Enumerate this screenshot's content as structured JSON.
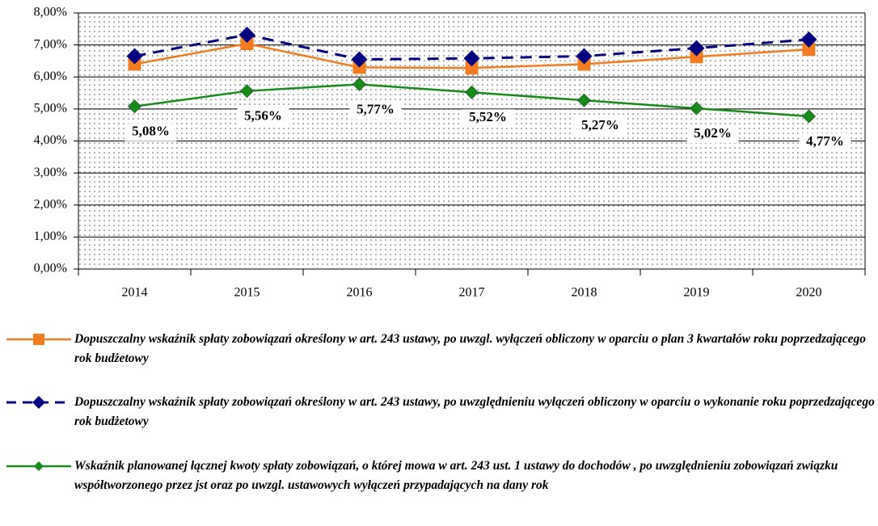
{
  "chart_data": {
    "type": "line",
    "categories": [
      "2014",
      "2015",
      "2016",
      "2017",
      "2018",
      "2019",
      "2020"
    ],
    "ylim": [
      0,
      8
    ],
    "yticks": [
      {
        "value": 0,
        "label": "0,00%"
      },
      {
        "value": 1,
        "label": "1,00%"
      },
      {
        "value": 2,
        "label": "2,00%"
      },
      {
        "value": 3,
        "label": "3,00%"
      },
      {
        "value": 4,
        "label": "4,00%"
      },
      {
        "value": 5,
        "label": "5,00%"
      },
      {
        "value": 6,
        "label": "6,00%"
      },
      {
        "value": 7,
        "label": "7,00%"
      },
      {
        "value": 8,
        "label": "8,00%"
      }
    ],
    "grid": true,
    "series": [
      {
        "name": "Dopuszczalny wskaźnik spłaty zobowiązań określony w art. 243 ustawy, po uwzgl. wyłączeń obliczony w oparciu o plan 3 kwartałów roku poprzedzającego rok budżetowy",
        "color": "#f47b20",
        "values": [
          6.4,
          7.04,
          6.3,
          6.28,
          6.4,
          6.63,
          6.86
        ]
      },
      {
        "name": "Dopuszczalny wskaźnik spłaty zobowiązań określony w art. 243 ustawy, po uwzględnieniu wyłączeń obliczony w oparciu o wykonanie roku  poprzedzającego rok budżetowy",
        "color": "#000080",
        "values": [
          6.65,
          7.32,
          6.55,
          6.58,
          6.65,
          6.9,
          7.17
        ]
      },
      {
        "name": "Wskaźnik planowanej łącznej kwoty spłaty zobowiązań, o której mowa w art. 243 ust. 1 ustawy do dochodów , po uwzględnieniu zobowiązań związku współtworzonego przez jst oraz po uwzgl. ustawowych wyłączeń przypadających na dany rok",
        "color": "#1a8a1a",
        "values": [
          5.08,
          5.56,
          5.77,
          5.52,
          5.27,
          5.02,
          4.77
        ],
        "value_labels": [
          "5,08%",
          "5,56%",
          "5,77%",
          "5,52%",
          "5,27%",
          "5,02%",
          "4,77%"
        ]
      }
    ]
  }
}
